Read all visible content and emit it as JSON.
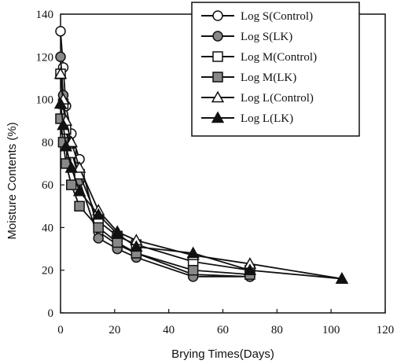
{
  "chart_data": {
    "type": "line",
    "title": "",
    "xlabel": "Brying Times(Days)",
    "ylabel": "Moisture Contents (%)",
    "xlim": [
      0,
      120
    ],
    "ylim": [
      0,
      140
    ],
    "xticks": [
      0,
      20,
      40,
      60,
      80,
      100,
      120
    ],
    "yticks": [
      0,
      20,
      40,
      60,
      80,
      100,
      120,
      140
    ],
    "grid": false,
    "legend_position": "top-right",
    "series": [
      {
        "name": "Log S(Control)",
        "marker": "circle",
        "fill": "#ffffff",
        "x": [
          0,
          1,
          2,
          4,
          7,
          14,
          21,
          28,
          49,
          70
        ],
        "y": [
          132,
          115,
          97,
          84,
          72,
          38,
          32,
          28,
          18,
          17
        ]
      },
      {
        "name": "Log S(LK)",
        "marker": "circle",
        "fill": "#888888",
        "x": [
          0,
          1,
          2,
          4,
          7,
          14,
          21,
          28,
          49,
          70
        ],
        "y": [
          120,
          102,
          88,
          76,
          62,
          35,
          30,
          26,
          17,
          17
        ]
      },
      {
        "name": "Log M(Control)",
        "marker": "square",
        "fill": "#ffffff",
        "x": [
          0,
          1,
          2,
          4,
          7,
          14,
          21,
          28,
          49,
          70
        ],
        "y": [
          112,
          98,
          86,
          75,
          65,
          43,
          36,
          32,
          24,
          20
        ]
      },
      {
        "name": "Log M(LK)",
        "marker": "square",
        "fill": "#888888",
        "x": [
          0,
          1,
          2,
          4,
          7,
          14,
          21,
          28,
          49,
          70
        ],
        "y": [
          91,
          80,
          70,
          60,
          50,
          40,
          33,
          28,
          20,
          18
        ]
      },
      {
        "name": "Log L(Control)",
        "marker": "triangle",
        "fill": "#ffffff",
        "x": [
          0,
          1,
          2,
          4,
          7,
          14,
          21,
          28,
          49,
          70,
          104
        ],
        "y": [
          112,
          100,
          90,
          80,
          68,
          48,
          38,
          34,
          27,
          23,
          16
        ]
      },
      {
        "name": "Log L(LK)",
        "marker": "triangle",
        "fill": "#111111",
        "x": [
          0,
          1,
          2,
          4,
          7,
          14,
          21,
          28,
          49,
          70,
          104
        ],
        "y": [
          98,
          88,
          78,
          68,
          57,
          46,
          37,
          31,
          28,
          20,
          16
        ]
      }
    ]
  }
}
